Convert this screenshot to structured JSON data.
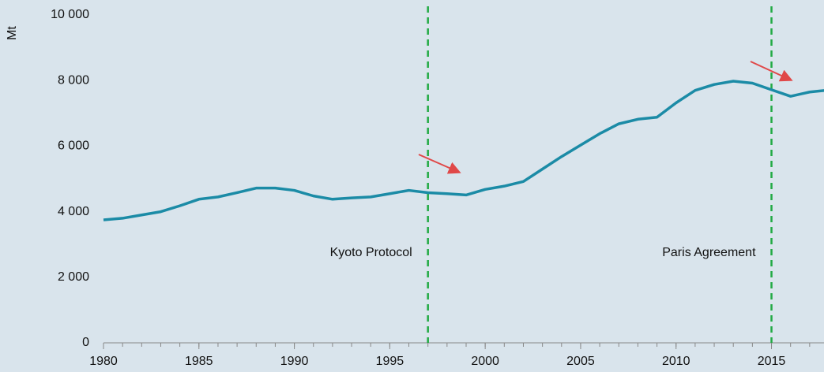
{
  "chart_data": {
    "type": "line",
    "ylabel": "Mt",
    "x": [
      1980,
      1981,
      1982,
      1983,
      1984,
      1985,
      1986,
      1987,
      1988,
      1989,
      1990,
      1991,
      1992,
      1993,
      1994,
      1995,
      1996,
      1997,
      1998,
      1999,
      2000,
      2001,
      2002,
      2003,
      2004,
      2005,
      2006,
      2007,
      2008,
      2009,
      2010,
      2011,
      2012,
      2013,
      2014,
      2015,
      2016,
      2017,
      2018
    ],
    "series": [
      {
        "color": "#1b8ba6",
        "values": [
          3750,
          3800,
          3900,
          4000,
          4180,
          4380,
          4450,
          4580,
          4720,
          4720,
          4650,
          4480,
          4380,
          4420,
          4450,
          4550,
          4650,
          4580,
          4550,
          4510,
          4680,
          4780,
          4920,
          5300,
          5680,
          6030,
          6380,
          6680,
          6820,
          6880,
          7320,
          7700,
          7880,
          7980,
          7920,
          7720,
          7520,
          7650,
          7710
        ]
      }
    ],
    "xlim": [
      1980,
      2018
    ],
    "xticks": [
      1980,
      1985,
      1990,
      1995,
      2000,
      2005,
      2010,
      2015
    ],
    "ylim": [
      0,
      10000
    ],
    "yticks": [
      {
        "value": 0,
        "label": "0"
      },
      {
        "value": 2000,
        "label": "2 000"
      },
      {
        "value": 4000,
        "label": "4 000"
      },
      {
        "value": 6000,
        "label": "6 000"
      },
      {
        "value": 8000,
        "label": "8 000"
      },
      {
        "value": 10000,
        "label": "10 000"
      }
    ],
    "events": [
      {
        "x": 1997,
        "label": "Kyoto Protocol",
        "color": "#22aa44"
      },
      {
        "x": 2015,
        "label": "Paris Agreement",
        "color": "#22aa44"
      }
    ]
  }
}
